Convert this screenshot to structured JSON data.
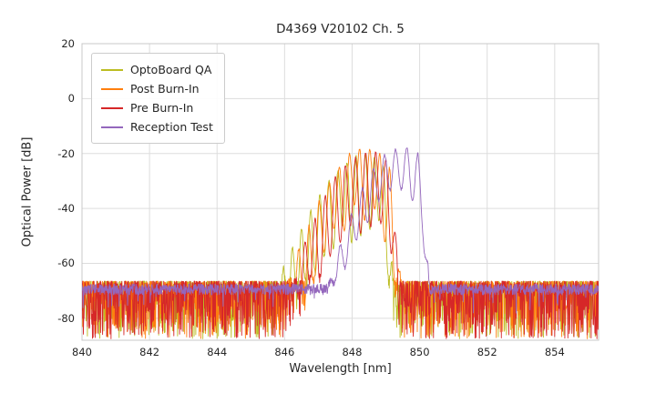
{
  "chart_data": {
    "type": "line",
    "title": "D4369 V20102 Ch. 5",
    "xlabel": "Wavelength [nm]",
    "ylabel": "Optical Power [dB]",
    "xlim": [
      840,
      855.3
    ],
    "ylim": [
      -88,
      20
    ],
    "xticks": [
      840,
      842,
      844,
      846,
      848,
      850,
      852,
      854
    ],
    "yticks": [
      20,
      0,
      -20,
      -40,
      -60,
      -80
    ],
    "grid": true,
    "grid_color": "#dddddd",
    "spine_color": "#c8c8c8",
    "legend_position": "upper left",
    "series": [
      {
        "name": "OptoBoard QA",
        "color": "#bcbd22",
        "seed": 11,
        "noise_top": -66.5,
        "noise_range": 21,
        "noise_pow": 2.2,
        "spike_p": 0,
        "spike_amp": 0,
        "mode_spacing": 0.27,
        "mode_depth": 26,
        "mode_phase": 0.05,
        "envelope": [
          [
            840,
            -110
          ],
          [
            845.5,
            -110
          ],
          [
            845.9,
            -64
          ],
          [
            846.3,
            -52
          ],
          [
            846.8,
            -40
          ],
          [
            847.3,
            -30
          ],
          [
            847.8,
            -23.5
          ],
          [
            848.2,
            -20.5
          ],
          [
            848.6,
            -21
          ],
          [
            848.9,
            -23
          ],
          [
            849.05,
            -34
          ],
          [
            849.18,
            -58
          ],
          [
            849.3,
            -110
          ],
          [
            855.3,
            -110
          ]
        ]
      },
      {
        "name": "Post Burn-In",
        "color": "#ff7f0e",
        "seed": 22,
        "noise_top": -66.5,
        "noise_range": 21,
        "noise_pow": 2.2,
        "spike_p": 0,
        "spike_amp": 0,
        "mode_spacing": 0.3,
        "mode_depth": 25,
        "mode_phase": 0.12,
        "envelope": [
          [
            840,
            -110
          ],
          [
            845.9,
            -110
          ],
          [
            846.2,
            -60
          ],
          [
            846.6,
            -50
          ],
          [
            847.0,
            -38
          ],
          [
            847.5,
            -27
          ],
          [
            848.0,
            -19
          ],
          [
            848.4,
            -18
          ],
          [
            848.8,
            -20
          ],
          [
            849.1,
            -24
          ],
          [
            849.3,
            -45
          ],
          [
            849.45,
            -70
          ],
          [
            849.55,
            -110
          ],
          [
            855.3,
            -110
          ]
        ]
      },
      {
        "name": "Pre Burn-In",
        "color": "#d62728",
        "seed": 33,
        "noise_top": -66.5,
        "noise_range": 21,
        "noise_pow": 2.2,
        "spike_p": 0,
        "spike_amp": 0,
        "mode_spacing": 0.3,
        "mode_depth": 23,
        "mode_phase": 0.0,
        "envelope": [
          [
            840,
            -110
          ],
          [
            846.0,
            -110
          ],
          [
            846.4,
            -58
          ],
          [
            846.9,
            -44
          ],
          [
            847.4,
            -30
          ],
          [
            847.9,
            -23
          ],
          [
            848.3,
            -20
          ],
          [
            848.7,
            -19.5
          ],
          [
            849.0,
            -22
          ],
          [
            849.2,
            -35
          ],
          [
            849.35,
            -60
          ],
          [
            849.5,
            -110
          ],
          [
            855.3,
            -110
          ]
        ]
      },
      {
        "name": "Reception Test",
        "color": "#9467bd",
        "seed": 44,
        "noise_top": -67.5,
        "noise_range": 4,
        "noise_pow": 1.2,
        "spike_p": 0.03,
        "spike_amp": 8,
        "mode_spacing": 0.33,
        "mode_depth": 16,
        "mode_phase": 0.2,
        "envelope": [
          [
            840,
            -110
          ],
          [
            847.0,
            -110
          ],
          [
            847.4,
            -62
          ],
          [
            847.8,
            -48
          ],
          [
            848.2,
            -35
          ],
          [
            848.6,
            -26
          ],
          [
            849.0,
            -20
          ],
          [
            849.3,
            -18.5
          ],
          [
            849.7,
            -18
          ],
          [
            849.95,
            -20
          ],
          [
            850.1,
            -35
          ],
          [
            850.25,
            -60
          ],
          [
            850.4,
            -110
          ],
          [
            855.3,
            -110
          ]
        ]
      }
    ]
  }
}
